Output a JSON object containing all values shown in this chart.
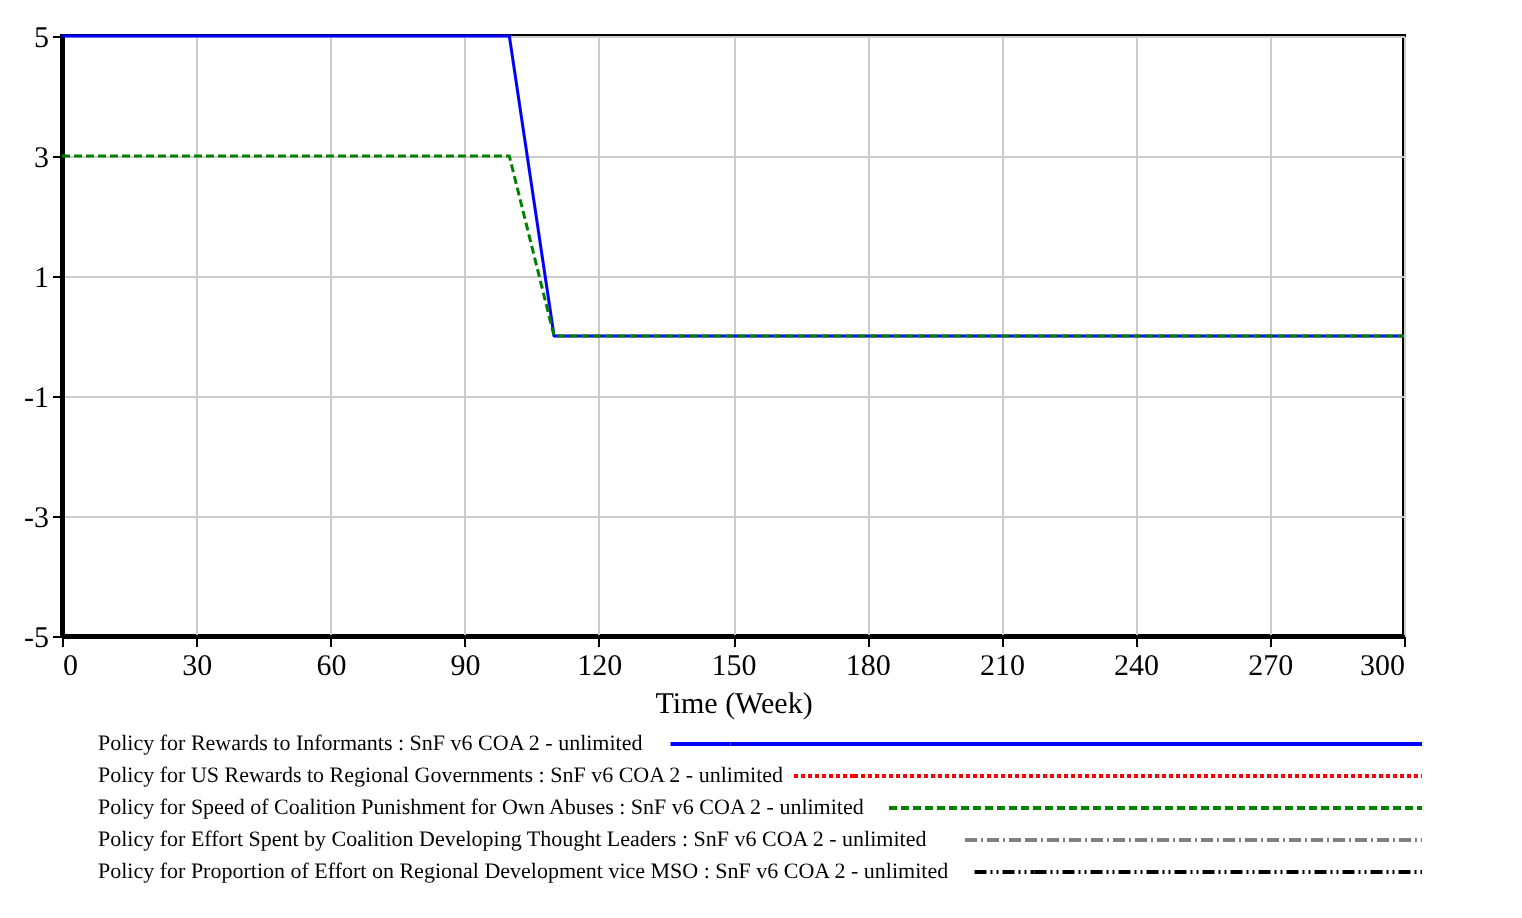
{
  "chart_data": {
    "type": "line",
    "xlabel": "Time (Week)",
    "x": [
      0,
      100,
      110,
      300
    ],
    "series": [
      {
        "name": "Policy for Rewards to Informants : SnF v6 COA 2 - unlimited",
        "color": "#0000ff",
        "line_style": "solid",
        "values": [
          5,
          5,
          0,
          0
        ]
      },
      {
        "name": "Policy for US Rewards to Regional Governments : SnF v6 COA 2 - unlimited",
        "color": "#ff0000",
        "line_style": "dotted",
        "values": [
          null,
          null,
          null,
          null
        ]
      },
      {
        "name": "Policy for Speed of Coalition Punishment for Own Abuses : SnF v6 COA 2 - unlimited",
        "color": "#008000",
        "line_style": "dashed",
        "values": [
          3,
          3,
          0,
          0
        ]
      },
      {
        "name": "Policy for Effort Spent by Coalition Developing Thought Leaders : SnF v6 COA 2 - unlimited",
        "color": "#808080",
        "line_style": "dashdot",
        "values": [
          null,
          null,
          null,
          null
        ]
      },
      {
        "name": "Policy for Proportion of Effort on Regional Development vice MSO : SnF v6 COA 2 - unlimited",
        "color": "#000000",
        "line_style": "dashdotdot",
        "values": [
          null,
          null,
          null,
          null
        ]
      }
    ],
    "xlim": [
      0,
      300
    ],
    "xticks": [
      0,
      30,
      60,
      90,
      120,
      150,
      180,
      210,
      240,
      270,
      300
    ],
    "ylim": [
      -5,
      5
    ],
    "yticks": [
      -5,
      -3,
      -1,
      1,
      3,
      5
    ],
    "grid": true,
    "legend": "bottom",
    "marker": "none"
  }
}
